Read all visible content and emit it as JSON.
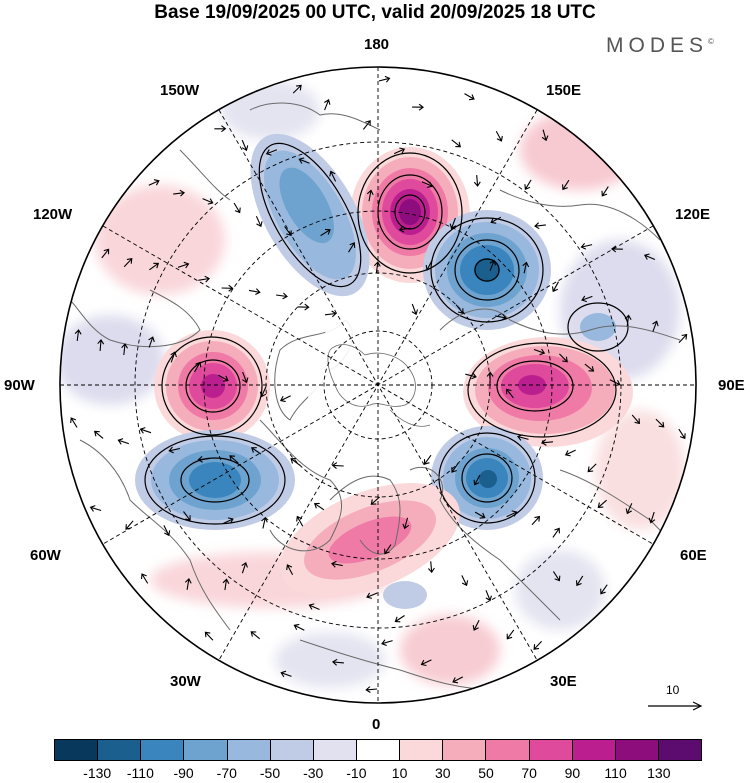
{
  "title": "Base 19/09/2025 00 UTC, valid 20/09/2025 18 UTC",
  "logo": {
    "text": "MODES",
    "mark": "©"
  },
  "longitude_labels": {
    "top": "180",
    "top_left": "150W",
    "top_right": "150E",
    "upper_left": "120W",
    "upper_right": "120E",
    "left": "90W",
    "right": "90E",
    "lower_left": "60W",
    "lower_right": "60E",
    "bottom_left": "30W",
    "bottom_right": "30E",
    "bottom": "0"
  },
  "reference_vector": {
    "label": "10"
  },
  "colorbar": {
    "colors": [
      "#08385c",
      "#1a5f8e",
      "#3a85bd",
      "#6ea3cf",
      "#98b8dd",
      "#c0cbe6",
      "#e1e1f0",
      "#ffffff",
      "#fbd9da",
      "#f5adbc",
      "#ef7aa6",
      "#e04a9c",
      "#bb1f8f",
      "#8d0d7c",
      "#5c0b6e"
    ],
    "tick_labels": [
      "-130",
      "-110",
      "-90",
      "-70",
      "-50",
      "-30",
      "-10",
      "10",
      "30",
      "50",
      "70",
      "90",
      "110",
      "130"
    ]
  },
  "anomaly_centers": [
    {
      "name": "anomaly-positive-north",
      "value": 130
    },
    {
      "name": "anomaly-negative-northeast",
      "value": -110
    },
    {
      "name": "anomaly-positive-east",
      "value": 110
    },
    {
      "name": "anomaly-negative-southeast",
      "value": -110
    },
    {
      "name": "anomaly-positive-west",
      "value": 110
    },
    {
      "name": "anomaly-negative-southwest",
      "value": -90
    },
    {
      "name": "anomaly-negative-northwest",
      "value": -70
    },
    {
      "name": "anomaly-positive-europe",
      "value": 50
    }
  ]
}
